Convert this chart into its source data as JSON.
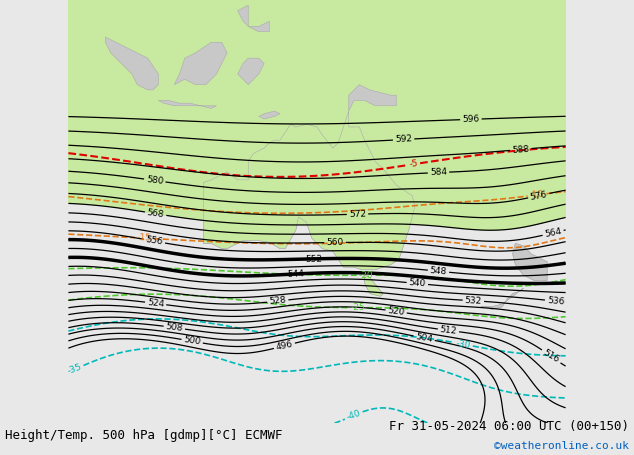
{
  "title_left": "Height/Temp. 500 hPa [gdmp][°C] ECMWF",
  "title_right": "Fr 31-05-2024 06:00 UTC (00+150)",
  "watermark": "©weatheronline.co.uk",
  "bg_color": "#e8e8e8",
  "ocean_color": "#e8e8e8",
  "land_color": "#c8c8c8",
  "australia_fill": "#c8eaa0",
  "nz_fill": "#c8eaa0",
  "island_fill": "#c8eaa0",
  "green_shade": "#c8eaa0",
  "font_size_title": 9,
  "font_size_label": 6.5,
  "height_color": "#000000",
  "temp_red": "#e00000",
  "temp_orange": "#e07818",
  "temp_green": "#50c830",
  "temp_cyan": "#00b8b8",
  "temp_blue": "#4040d0",
  "lon_min": 88,
  "lon_max": 182,
  "lat_min": -68,
  "lat_max": 12
}
